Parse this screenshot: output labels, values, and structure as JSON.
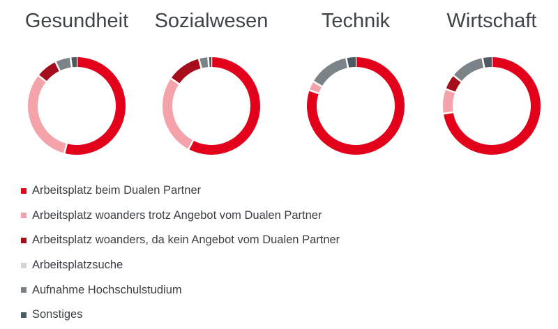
{
  "colors": {
    "Arbeitsplatz beim Dualen Partner": "#e2001a",
    "Arbeitsplatz woanders trotz Angebot vom Dualen Partner": "#f4a3ab",
    "Arbeitsplatz woanders, da kein Angebot vom Dualen Partner": "#a50d1c",
    "Arbeitsplatzsuche": "#d2d4d6",
    "Aufnahme Hochschulstudium": "#7b8388",
    "Sonstiges": "#4e5a62"
  },
  "chart_data": {
    "type": "pie",
    "donut": true,
    "legend_position": "bottom-left",
    "categories": [
      "Arbeitsplatz beim Dualen Partner",
      "Arbeitsplatz woanders trotz Angebot vom Dualen Partner",
      "Arbeitsplatz woanders, da kein Angebot vom Dualen Partner",
      "Arbeitsplatzsuche",
      "Aufnahme Hochschulstudium",
      "Sonstiges"
    ],
    "series": [
      {
        "name": "Gesundheit",
        "values": [
          53,
          31,
          7,
          0,
          5,
          2
        ]
      },
      {
        "name": "Sozialwesen",
        "values": [
          56,
          26,
          11,
          0,
          3,
          1
        ]
      },
      {
        "name": "Technik",
        "values": [
          77,
          3,
          0,
          0,
          13,
          3
        ]
      },
      {
        "name": "Wirtschaft",
        "values": [
          71,
          8,
          5,
          0,
          11,
          3
        ]
      }
    ]
  }
}
